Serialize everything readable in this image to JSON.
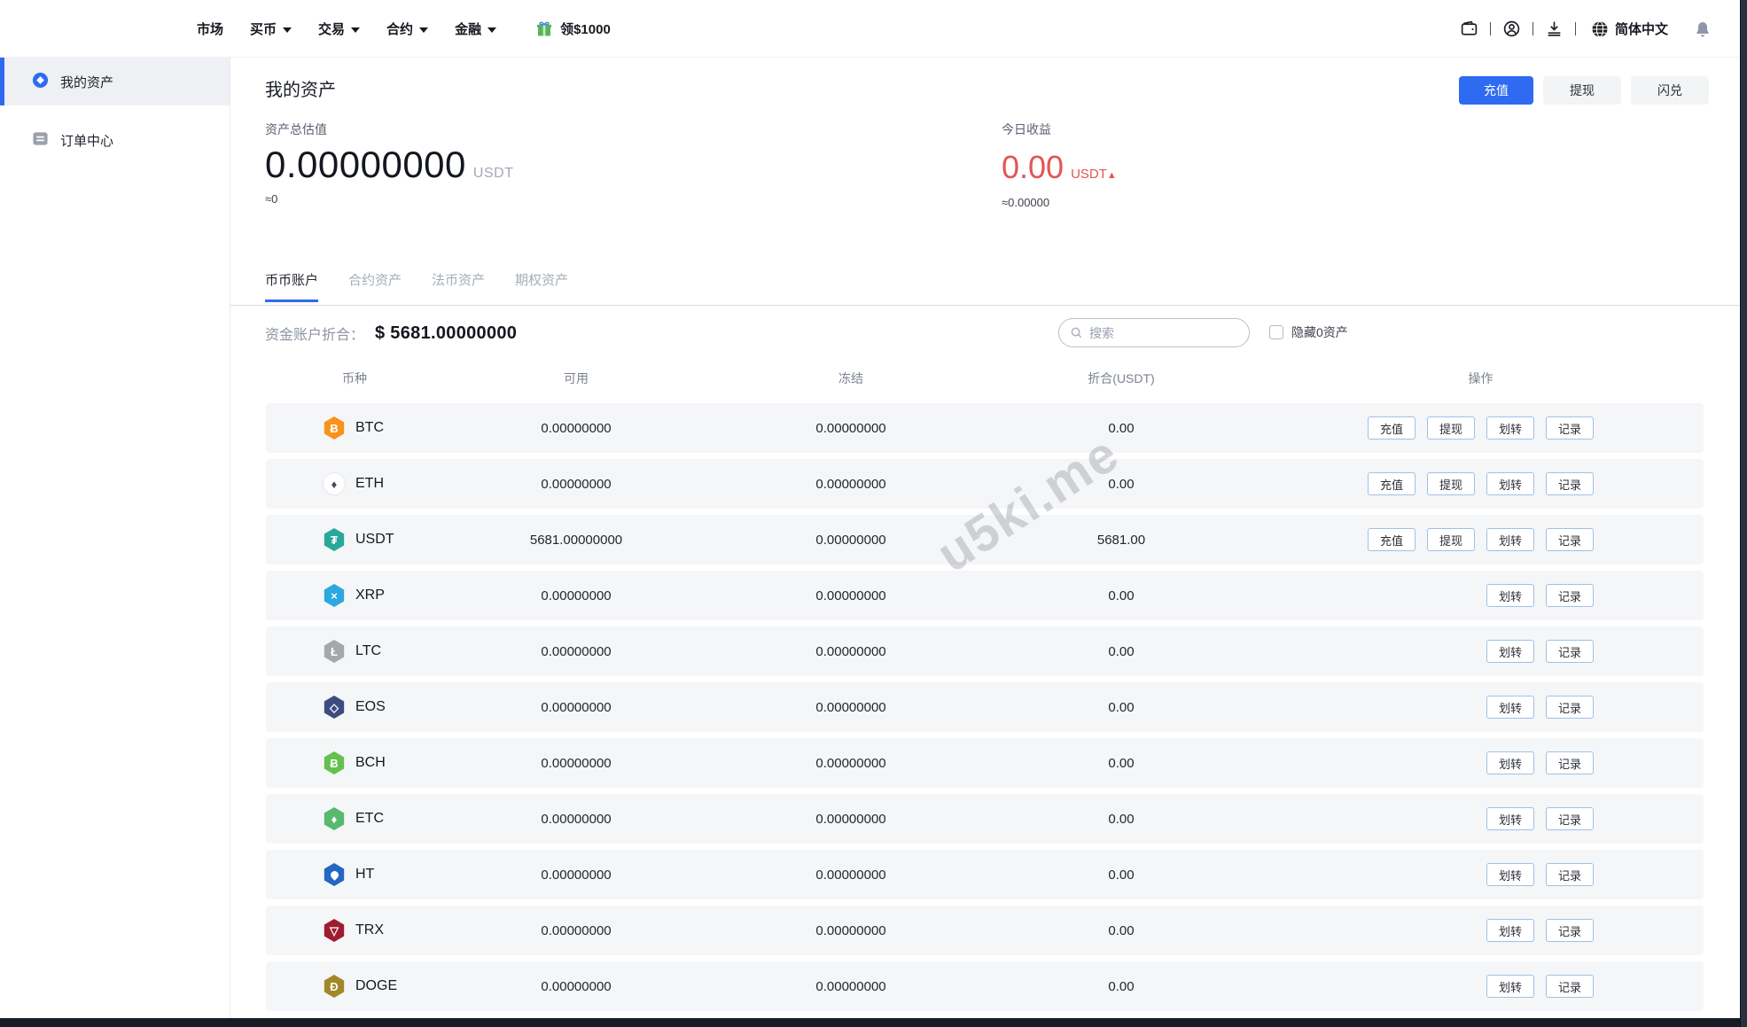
{
  "nav": {
    "items": [
      {
        "label": "市场",
        "caret": false
      },
      {
        "label": "买币",
        "caret": true
      },
      {
        "label": "交易",
        "caret": true
      },
      {
        "label": "合约",
        "caret": true
      },
      {
        "label": "金融",
        "caret": true
      }
    ],
    "promo_label": "领$1000",
    "language": "简体中文"
  },
  "sidebar": {
    "items": [
      {
        "label": "我的资产",
        "icon": "assets-icon",
        "active": true
      },
      {
        "label": "订单中心",
        "icon": "orders-icon",
        "active": false
      }
    ]
  },
  "page": {
    "title": "我的资产",
    "actions": [
      {
        "label": "充值",
        "name": "deposit",
        "primary": true
      },
      {
        "label": "提现",
        "name": "withdraw",
        "primary": false
      },
      {
        "label": "闪兑",
        "name": "flash-exchange",
        "primary": false
      }
    ]
  },
  "stats": {
    "total_label": "资产总估值",
    "total_value": "0.00000000",
    "total_unit": "USDT",
    "total_approx": "≈0",
    "today_label": "今日收益",
    "today_value": "0.00",
    "today_unit": "USDT",
    "today_arrow": "▲",
    "today_approx": "≈0.00000"
  },
  "tabs": [
    {
      "label": "币币账户",
      "active": true
    },
    {
      "label": "合约资产",
      "active": false
    },
    {
      "label": "法币资产",
      "active": false
    },
    {
      "label": "期权资产",
      "active": false
    }
  ],
  "funds": {
    "label": "资金账户折合：",
    "value": "$ 5681.00000000",
    "search_placeholder": "搜索",
    "hide_zero_label": "隐藏0资产",
    "hide_zero_checked": false
  },
  "table": {
    "headers": [
      "币种",
      "可用",
      "冻结",
      "折合(USDT)",
      "操作"
    ],
    "action_sets": {
      "full": [
        {
          "label": "充值",
          "name": "deposit"
        },
        {
          "label": "提现",
          "name": "withdraw"
        },
        {
          "label": "划转",
          "name": "transfer"
        },
        {
          "label": "记录",
          "name": "record"
        }
      ],
      "basic": [
        {
          "label": "划转",
          "name": "transfer"
        },
        {
          "label": "记录",
          "name": "record"
        }
      ]
    },
    "rows": [
      {
        "symbol": "BTC",
        "icon_bg": "#f7931a",
        "glyph": "Ƀ",
        "shape": "hex",
        "available": "0.00000000",
        "frozen": "0.00000000",
        "converted": "0.00",
        "actions": "full"
      },
      {
        "symbol": "ETH",
        "icon_bg": "#ffffff",
        "glyph": "♦",
        "shape": "circle",
        "glyph_color": "#454a58",
        "available": "0.00000000",
        "frozen": "0.00000000",
        "converted": "0.00",
        "actions": "full"
      },
      {
        "symbol": "USDT",
        "icon_bg": "#2aa79b",
        "glyph": "₮",
        "shape": "hex",
        "available": "5681.00000000",
        "frozen": "0.00000000",
        "converted": "5681.00",
        "actions": "full"
      },
      {
        "symbol": "XRP",
        "icon_bg": "#2ba8dd",
        "glyph": "×",
        "shape": "hex",
        "available": "0.00000000",
        "frozen": "0.00000000",
        "converted": "0.00",
        "actions": "basic"
      },
      {
        "symbol": "LTC",
        "icon_bg": "#a5a8ab",
        "glyph": "Ł",
        "shape": "hex",
        "available": "0.00000000",
        "frozen": "0.00000000",
        "converted": "0.00",
        "actions": "basic"
      },
      {
        "symbol": "EOS",
        "icon_bg": "#3e4b80",
        "glyph": "◇",
        "shape": "hex",
        "available": "0.00000000",
        "frozen": "0.00000000",
        "converted": "0.00",
        "actions": "basic"
      },
      {
        "symbol": "BCH",
        "icon_bg": "#65c04f",
        "glyph": "Ƀ",
        "shape": "hex",
        "available": "0.00000000",
        "frozen": "0.00000000",
        "converted": "0.00",
        "actions": "basic"
      },
      {
        "symbol": "ETC",
        "icon_bg": "#58b96f",
        "glyph": "♦",
        "shape": "hex",
        "available": "0.00000000",
        "frozen": "0.00000000",
        "converted": "0.00",
        "actions": "basic"
      },
      {
        "symbol": "HT",
        "icon_bg": "#2466c4",
        "glyph": "",
        "shape": "hex",
        "special": "drop",
        "available": "0.00000000",
        "frozen": "0.00000000",
        "converted": "0.00",
        "actions": "basic"
      },
      {
        "symbol": "TRX",
        "icon_bg": "#9e1d2f",
        "glyph": "▽",
        "shape": "hex",
        "available": "0.00000000",
        "frozen": "0.00000000",
        "converted": "0.00",
        "actions": "basic"
      },
      {
        "symbol": "DOGE",
        "icon_bg": "#a38829",
        "glyph": "Đ",
        "shape": "hex",
        "available": "0.00000000",
        "frozen": "0.00000000",
        "converted": "0.00",
        "actions": "basic"
      }
    ]
  },
  "watermark": "u5ki.me",
  "colors": {
    "accent": "#2e6bf2",
    "negative_red": "#e15654",
    "row_bg": "#f5f6f8"
  }
}
